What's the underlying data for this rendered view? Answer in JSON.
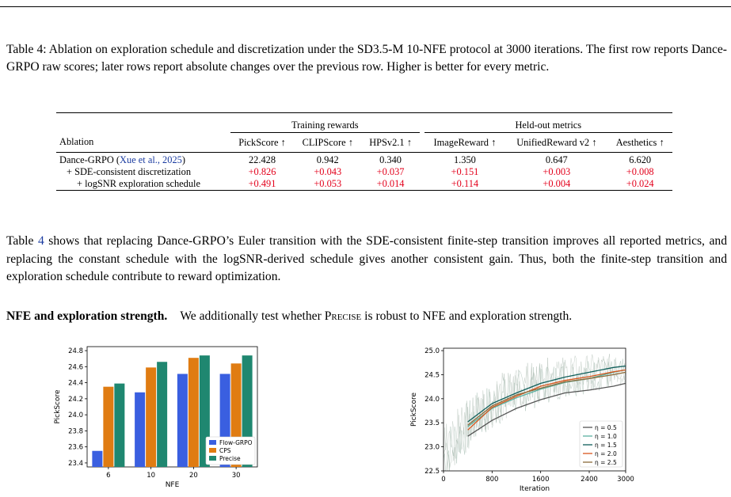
{
  "caption": {
    "label": "Table 4:",
    "text": "Ablation on exploration schedule and discretization under the SD3.5-M 10-NFE protocol at 3000 iterations. The first row reports Dance-GRPO raw scores; later rows report absolute changes over the previous row. Higher is better for every metric."
  },
  "table": {
    "group_training": "Training rewards",
    "group_heldout": "Held-out metrics",
    "col_ablation": "Ablation",
    "columns": [
      "PickScore ↑",
      "CLIPScore ↑",
      "HPSv2.1 ↑",
      "ImageReward ↑",
      "UnifiedReward v2 ↑",
      "Aesthetics ↑"
    ],
    "rows": [
      {
        "name": "Dance-GRPO (",
        "cite": "Xue et al., 2025",
        "name_end": ")",
        "values": [
          "22.428",
          "0.942",
          "0.340",
          "1.350",
          "0.647",
          "6.620"
        ]
      },
      {
        "name": "+ SDE-consistent discretization",
        "values": [
          "+0.826",
          "+0.043",
          "+0.037",
          "+0.151",
          "+0.003",
          "+0.008"
        ]
      },
      {
        "name": "+ logSNR exploration schedule",
        "values": [
          "+0.491",
          "+0.053",
          "+0.014",
          "+0.114",
          "+0.004",
          "+0.024"
        ]
      }
    ]
  },
  "body": {
    "p1_pre": "Table ",
    "p1_ref": "4",
    "p1_post": " shows that replacing Dance-GRPO’s Euler transition with the SDE-consistent finite-step transition improves all reported metrics, and replacing the constant schedule with the logSNR-derived schedule gives another consistent gain. Thus, both the finite-step transition and exploration schedule contribute to reward optimization.",
    "p2_head": "NFE and exploration strength.",
    "p2_pre": "We additionally test whether ",
    "p2_sc": "Precise",
    "p2_post": " is robust to NFE and exploration strength."
  },
  "chart_data": [
    {
      "type": "bar",
      "categories": [
        "6",
        "10",
        "20",
        "30"
      ],
      "series": [
        {
          "name": "Flow-GRPO",
          "values": [
            23.55,
            24.28,
            24.51,
            24.51
          ]
        },
        {
          "name": "CPS",
          "values": [
            24.35,
            24.59,
            24.71,
            24.64
          ]
        },
        {
          "name": "Precise",
          "values": [
            24.39,
            24.66,
            24.74,
            24.74
          ]
        }
      ],
      "colors": [
        "#3a5fe0",
        "#e07c12",
        "#1f8770"
      ],
      "xlabel": "NFE",
      "ylabel": "PickScore",
      "ylim": [
        23.35,
        24.85
      ],
      "yticks": [
        "23.4",
        "23.6",
        "23.8",
        "24.0",
        "24.2",
        "24.4",
        "24.6",
        "24.8"
      ],
      "legend": "bottom-right",
      "grid": false
    },
    {
      "type": "line",
      "xlabel": "Iteration",
      "ylabel": "PickScore",
      "xlim": [
        0,
        3000
      ],
      "ylim": [
        22.5,
        25.05
      ],
      "xticks": [
        "0",
        "800",
        "1600",
        "2400",
        "3000"
      ],
      "yticks": [
        "22.5",
        "23.0",
        "23.5",
        "24.0",
        "24.5",
        "25.0"
      ],
      "x": [
        400,
        800,
        1200,
        1600,
        2000,
        2400,
        2800,
        3000
      ],
      "series": [
        {
          "name": "η = 0.5",
          "color": "#555555",
          "values": [
            23.22,
            23.55,
            23.8,
            23.98,
            24.12,
            24.18,
            24.26,
            24.32
          ]
        },
        {
          "name": "η = 1.0",
          "color": "#5ab0a0",
          "values": [
            23.42,
            23.8,
            24.02,
            24.2,
            24.34,
            24.42,
            24.55,
            24.6
          ]
        },
        {
          "name": "η = 1.5",
          "color": "#0f5e5a",
          "values": [
            23.52,
            23.9,
            24.12,
            24.32,
            24.45,
            24.55,
            24.65,
            24.68
          ]
        },
        {
          "name": "η = 2.0",
          "color": "#d9561c",
          "values": [
            23.35,
            23.82,
            24.05,
            24.26,
            24.38,
            24.46,
            24.56,
            24.6
          ]
        },
        {
          "name": "η = 2.5",
          "color": "#8a6a3a",
          "values": [
            23.45,
            23.85,
            24.08,
            24.22,
            24.35,
            24.42,
            24.5,
            24.55
          ]
        }
      ],
      "legend": "bottom-right",
      "grid": false
    }
  ]
}
